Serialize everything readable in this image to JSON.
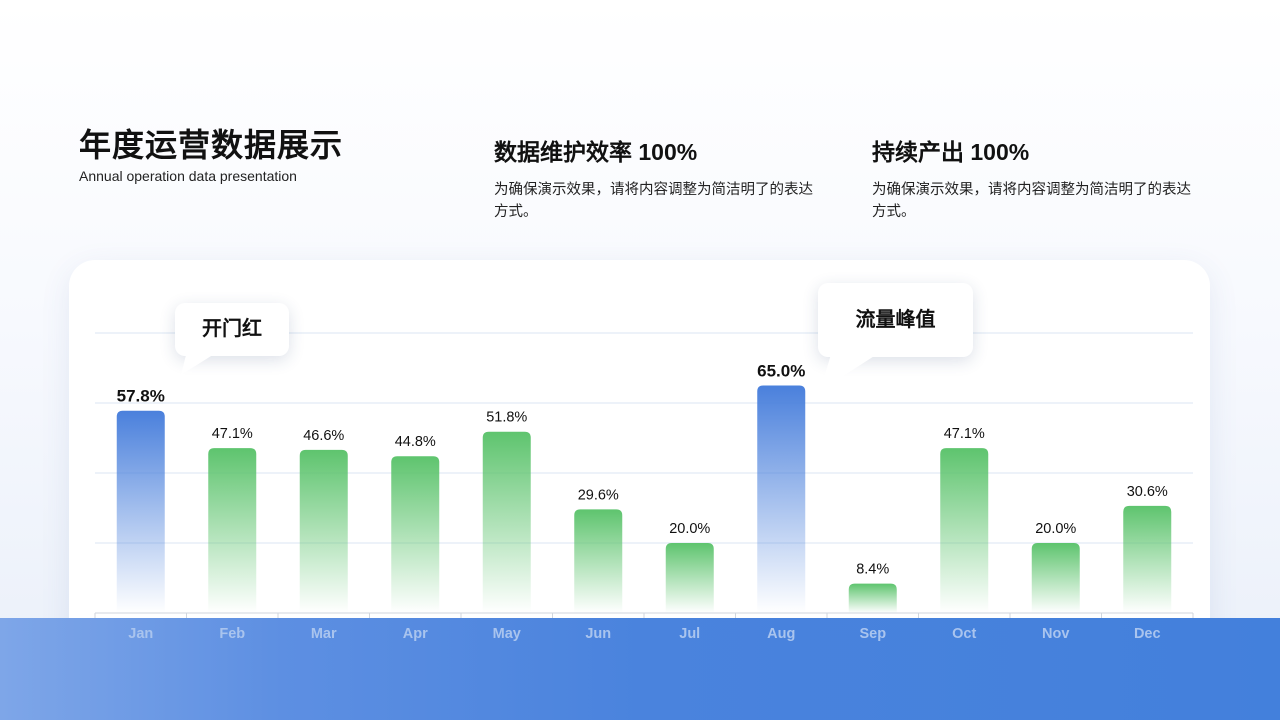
{
  "header": {
    "title": "年度运营数据展示",
    "subtitle": "Annual operation data presentation"
  },
  "stats": [
    {
      "title": "数据维护效率 100%",
      "text": "为确保演示效果，请将内容调整为简洁明了的表达方式。"
    },
    {
      "title": "持续产出 100%",
      "text": "为确保演示效果，请将内容调整为简洁明了的表达方式。"
    }
  ],
  "callouts": [
    {
      "label": "开门红",
      "month": "Jan"
    },
    {
      "label": "流量峰值",
      "month": "Aug"
    }
  ],
  "chart_data": {
    "type": "bar",
    "categories": [
      "Jan",
      "Feb",
      "Mar",
      "Apr",
      "May",
      "Jun",
      "Jul",
      "Aug",
      "Sep",
      "Oct",
      "Nov",
      "Dec"
    ],
    "values": [
      57.8,
      47.1,
      46.6,
      44.8,
      51.8,
      29.6,
      20.0,
      65.0,
      8.4,
      47.1,
      20.0,
      30.6
    ],
    "data_labels": [
      "57.8%",
      "47.1%",
      "46.6%",
      "44.8%",
      "51.8%",
      "29.6%",
      "20.0%",
      "65.0%",
      "8.4%",
      "47.1%",
      "20.0%",
      "30.6%"
    ],
    "highlighted": [
      "Jan",
      "Aug"
    ],
    "ylim": [
      0,
      80
    ],
    "grid": true,
    "colors": {
      "highlight": "#4a80dc",
      "normal": "#5ec46e"
    },
    "title": "",
    "xlabel": "",
    "ylabel": ""
  }
}
